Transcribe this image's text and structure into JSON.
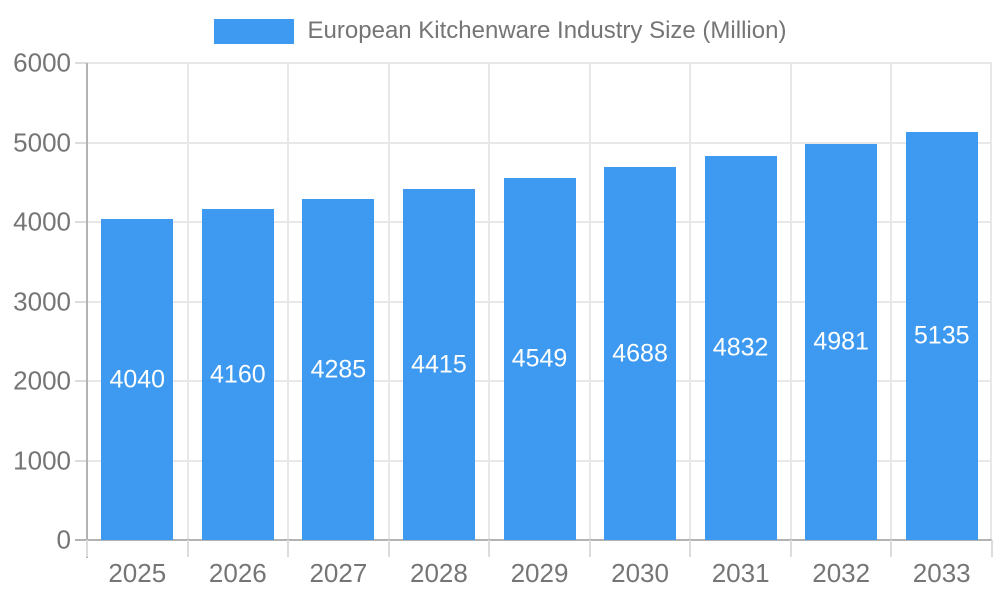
{
  "legend": {
    "label": "European Kitchenware Industry Size (Million)"
  },
  "chart_data": {
    "type": "bar",
    "title": "European Kitchenware Industry Size (Million)",
    "categories": [
      "2025",
      "2026",
      "2027",
      "2028",
      "2029",
      "2030",
      "2031",
      "2032",
      "2033"
    ],
    "values": [
      4040,
      4160,
      4285,
      4415,
      4549,
      4688,
      4832,
      4981,
      5135
    ],
    "xlabel": "",
    "ylabel": "",
    "ylim": [
      0,
      6000
    ],
    "yticks": [
      0,
      1000,
      2000,
      3000,
      4000,
      5000,
      6000
    ],
    "grid": true,
    "legend_position": "top-center",
    "bar_labels_visible": true,
    "colors": {
      "bar": "#3d9af0",
      "bar_label": "#ffffff",
      "axis_text": "#757575",
      "legend_text": "#757575",
      "gridline": "#e8e8e8",
      "tick": "#dcdcdc",
      "axis_line": "#b3b3b3",
      "background": "#ffffff"
    }
  }
}
